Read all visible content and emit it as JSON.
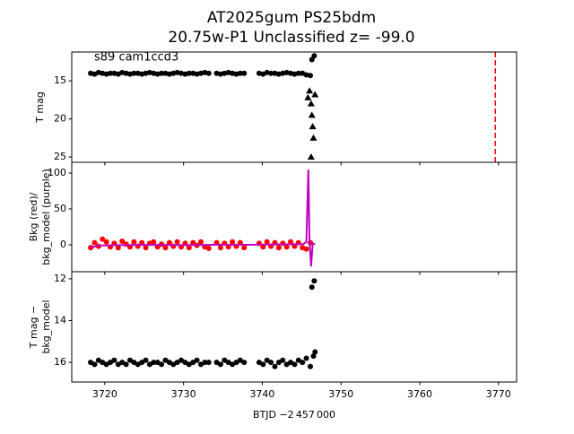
{
  "chart_data": [
    {
      "type": "scatter",
      "title": "AT2025gum  PS25bdm",
      "subtitle": "20.75w-P1 Unclassified z= -99.0",
      "annotation": "s89 cam1ccd3",
      "ylabel": [
        "T mag"
      ],
      "xlim": [
        3715.8,
        3772.3
      ],
      "ylim": [
        25.7,
        11.2
      ],
      "yticks": [
        15,
        20,
        25
      ],
      "x": [
        3718.2,
        3718.7,
        3719.2,
        3719.7,
        3720.2,
        3720.7,
        3721.2,
        3721.7,
        3722.2,
        3722.7,
        3723.2,
        3723.7,
        3724.2,
        3724.7,
        3725.2,
        3725.7,
        3726.2,
        3726.7,
        3727.2,
        3727.7,
        3728.2,
        3728.7,
        3729.2,
        3729.7,
        3730.2,
        3730.7,
        3731.2,
        3731.7,
        3732.2,
        3732.7,
        3733.2,
        3734.2,
        3734.7,
        3735.2,
        3735.7,
        3736.2,
        3736.7,
        3737.2,
        3737.7,
        3739.6,
        3740.1,
        3740.6,
        3741.1,
        3741.6,
        3742.1,
        3742.6,
        3743.1,
        3743.6,
        3744.1,
        3744.6,
        3745.1,
        3745.6,
        3746.1
      ],
      "series": [
        {
          "marker": "circle",
          "color": "#000000",
          "values": [
            14.0,
            14.1,
            13.9,
            14.0,
            14.1,
            14.0,
            14.0,
            14.1,
            13.9,
            14.0,
            14.1,
            14.0,
            14.0,
            14.1,
            14.0,
            13.9,
            14.0,
            14.1,
            14.0,
            14.0,
            14.1,
            14.0,
            13.9,
            14.0,
            14.1,
            14.0,
            14.0,
            14.1,
            14.0,
            13.9,
            14.0,
            14.0,
            14.1,
            14.0,
            13.9,
            14.0,
            14.1,
            14.0,
            14.0,
            14.0,
            14.1,
            13.9,
            14.0,
            14.0,
            14.1,
            14.0,
            13.9,
            14.0,
            14.1,
            14.0,
            14.0,
            14.2,
            14.3
          ]
        },
        {
          "marker": "circle",
          "color": "#000000",
          "x": [
            3746.3,
            3746.6
          ],
          "values": [
            12.2,
            11.7
          ]
        },
        {
          "marker": "triangle",
          "color": "#000000",
          "x": [
            3745.8,
            3746.0,
            3746.2,
            3746.3,
            3746.4,
            3746.5,
            3746.7,
            3746.2
          ],
          "values": [
            17.2,
            16.3,
            18.0,
            19.5,
            21.0,
            22.5,
            16.8,
            25.0
          ]
        }
      ],
      "vline": {
        "x": 3769.6,
        "color": "#ff0000",
        "style": "dashed"
      }
    },
    {
      "type": "scatter",
      "ylabel": [
        "Bkg (red)/",
        "bkg_model (purple)"
      ],
      "xlim": [
        3715.8,
        3772.3
      ],
      "ylim": [
        -37.5,
        115
      ],
      "yticks": [
        0,
        50,
        100
      ],
      "x": [
        3718.2,
        3718.7,
        3719.2,
        3719.7,
        3720.2,
        3720.7,
        3721.2,
        3721.7,
        3722.2,
        3722.7,
        3723.2,
        3723.7,
        3724.2,
        3724.7,
        3725.2,
        3725.7,
        3726.2,
        3726.7,
        3727.2,
        3727.7,
        3728.2,
        3728.7,
        3729.2,
        3729.7,
        3730.2,
        3730.7,
        3731.2,
        3731.7,
        3732.2,
        3732.7,
        3733.2,
        3734.2,
        3734.7,
        3735.2,
        3735.7,
        3736.2,
        3736.7,
        3737.2,
        3737.7,
        3739.6,
        3740.1,
        3740.6,
        3741.1,
        3741.6,
        3742.1,
        3742.6,
        3743.1,
        3743.6,
        3744.1,
        3744.6,
        3745.1,
        3745.6,
        3746.1
      ],
      "series": [
        {
          "marker": "circle",
          "color": "#ff0000",
          "values": [
            -4,
            3,
            -2,
            8,
            4,
            -3,
            2,
            -4,
            5,
            1,
            -3,
            4,
            -2,
            3,
            -4,
            2,
            4,
            -3,
            1,
            -4,
            3,
            -2,
            4,
            -3,
            2,
            -4,
            3,
            -1,
            4,
            -3,
            -5,
            3,
            -4,
            2,
            -3,
            4,
            -2,
            3,
            -4,
            2,
            -3,
            4,
            -2,
            3,
            -4,
            2,
            -3,
            4,
            -2,
            3,
            -4,
            -6,
            3
          ]
        },
        {
          "marker": "line",
          "color": "#bf00bf",
          "x": [
            3718.2,
            3718.6,
            3719.2,
            3722,
            3726,
            3730,
            3734,
            3738,
            3742,
            3745.2,
            3745.6,
            3745.85,
            3746.0,
            3746.2,
            3746.4,
            3746.7
          ],
          "values": [
            -1,
            -3,
            -1,
            -0.5,
            0,
            -0.5,
            0,
            0,
            0.5,
            1,
            4,
            105,
            5,
            -30,
            2,
            1
          ]
        }
      ]
    },
    {
      "type": "scatter",
      "ylabel": [
        "T mag −",
        "bkg_model"
      ],
      "xlabel": "BTJD −2 457 000",
      "xlim": [
        3715.8,
        3772.3
      ],
      "ylim": [
        16.94,
        11.66
      ],
      "yticks": [
        12,
        14,
        16
      ],
      "xticks": [
        3720,
        3730,
        3740,
        3750,
        3760,
        3770
      ],
      "x": [
        3718.2,
        3718.7,
        3719.2,
        3719.7,
        3720.2,
        3720.7,
        3721.2,
        3721.7,
        3722.2,
        3722.7,
        3723.2,
        3723.7,
        3724.2,
        3724.7,
        3725.2,
        3725.7,
        3726.2,
        3726.7,
        3727.2,
        3727.7,
        3728.2,
        3728.7,
        3729.2,
        3729.7,
        3730.2,
        3730.7,
        3731.2,
        3731.7,
        3732.2,
        3732.7,
        3733.2,
        3734.2,
        3734.7,
        3735.2,
        3735.7,
        3736.2,
        3736.7,
        3737.2,
        3737.7,
        3739.6,
        3740.1,
        3740.6,
        3741.1,
        3741.6,
        3742.1,
        3742.6,
        3743.1,
        3743.6,
        3744.1,
        3744.6,
        3745.1,
        3745.6,
        3746.1
      ],
      "series": [
        {
          "marker": "circle",
          "color": "#000000",
          "values": [
            16.0,
            16.1,
            15.9,
            16.0,
            16.1,
            16.0,
            15.9,
            16.1,
            16.0,
            16.1,
            15.9,
            16.0,
            16.1,
            16.0,
            15.9,
            16.1,
            16.0,
            16.0,
            16.1,
            15.9,
            16.0,
            16.1,
            16.0,
            15.9,
            16.0,
            16.1,
            16.0,
            15.9,
            16.1,
            16.0,
            16.0,
            16.0,
            16.1,
            15.9,
            16.0,
            16.1,
            16.0,
            15.9,
            16.0,
            16.0,
            16.1,
            15.9,
            16.0,
            16.2,
            16.0,
            15.9,
            16.1,
            16.0,
            16.1,
            15.9,
            16.0,
            15.8,
            16.2
          ]
        },
        {
          "marker": "circle",
          "color": "#000000",
          "x": [
            3746.3,
            3746.6,
            3746.5,
            3746.7
          ],
          "values": [
            12.4,
            12.1,
            15.7,
            15.5
          ]
        }
      ]
    }
  ]
}
